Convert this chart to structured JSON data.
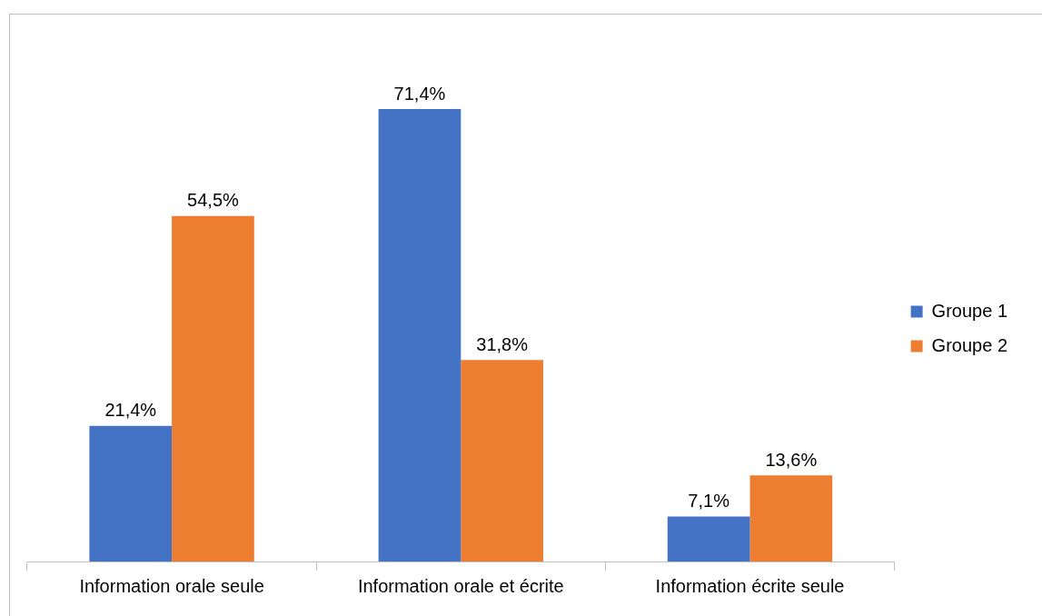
{
  "chart_data": {
    "type": "bar",
    "categories": [
      "Information orale seule",
      "Information orale et écrite",
      "Information écrite seule"
    ],
    "series": [
      {
        "name": "Groupe 1",
        "color": "#4472c4",
        "values": [
          21.4,
          71.4,
          7.1
        ],
        "value_labels": [
          "21,4%",
          "71,4%",
          "7,1%"
        ]
      },
      {
        "name": "Groupe 2",
        "color": "#ed7d31",
        "values": [
          54.5,
          31.8,
          13.6
        ],
        "value_labels": [
          "54,5%",
          "31,8%",
          "13,6%"
        ]
      }
    ],
    "grid": false,
    "legend": "right"
  }
}
